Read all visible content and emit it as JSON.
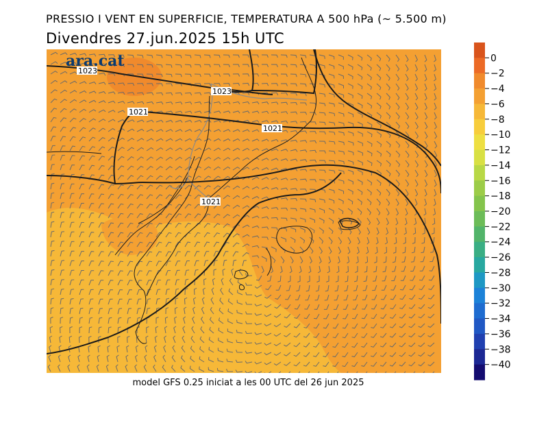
{
  "title": "PRESSIO I VENT EN SUPERFICIE, TEMPERATURA A 500 hPa (~ 5.500 m)",
  "subtitle": "Divendres  27.jun.2025  15h  UTC",
  "footer": "model GFS 0.25 iniciat a les 00 UTC del 26 jun 2025",
  "logo": "ara.cat",
  "isobar_labels": [
    "1023",
    "1023",
    "1021",
    "1021",
    "1021"
  ],
  "colorbar": {
    "ticks": [
      "0",
      "−2",
      "−4",
      "−6",
      "−8",
      "−10",
      "−12",
      "−14",
      "−16",
      "−18",
      "−20",
      "−22",
      "−24",
      "−26",
      "−28",
      "−30",
      "−32",
      "−34",
      "−36",
      "−38",
      "−40"
    ],
    "colors": [
      "#d9541c",
      "#ec6a26",
      "#f08a2c",
      "#f4a032",
      "#f6b838",
      "#f7cd3c",
      "#eedf42",
      "#d8e044",
      "#b8d846",
      "#9ccc48",
      "#84c44c",
      "#6cbc58",
      "#52b46a",
      "#3aae84",
      "#28a8a0",
      "#1e98c4",
      "#1c82d8",
      "#1e6cd0",
      "#2058c4",
      "#2040b0",
      "#1c2894",
      "#140c70"
    ]
  },
  "temperature_fill": {
    "colors": [
      "#f4a032",
      "#f6b838",
      "#f08a2c"
    ]
  }
}
